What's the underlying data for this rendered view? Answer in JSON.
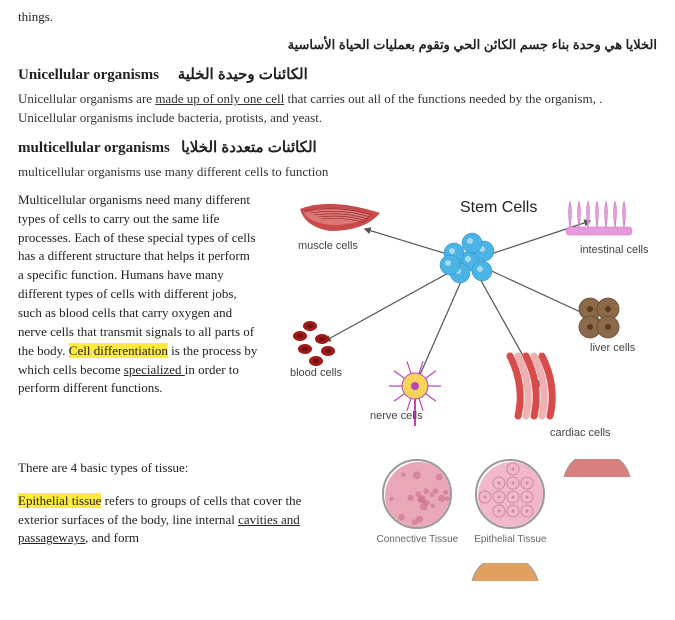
{
  "partial_top": "things.",
  "ar_intro": "الخلايا هي وحدة بناء جسم الكائن الحي وتقوم بعمليات الحياة الأساسية",
  "unicellular": {
    "heading_en": "Unicellular organisms",
    "heading_ar": "الكائنات وحيدة الخلية",
    "para_pre": "Unicellular organisms are ",
    "para_underlined": "made up of only one cell",
    "para_post": " that carries out all of the functions needed by the organism, . Unicellular organisms include bacteria, protists, and yeast."
  },
  "multicellular": {
    "heading_en": "multicellular organisms",
    "heading_ar": "الكائنات متعددة الخلايا",
    "para": "multicellular organisms use many different cells to function"
  },
  "body_text": {
    "p1_pre": "Multicellular organisms need many different types of cells to carry out the same life processes. Each of these special types of cells has a different structure that helps it perform a specific function. Humans have many different types of cells with different jobs, such as blood cells that carry oxygen and nerve cells that transmit signals to all parts of the body. ",
    "p1_hl": "Cell differentiation",
    "p1_mid": " is the process by which cells become ",
    "p1_underlined": "specialized ",
    "p1_post": "in order to perform different functions."
  },
  "diagram": {
    "title": "Stem Cells",
    "labels": {
      "muscle": "muscle cells",
      "intestinal": "intestinal cells",
      "blood": "blood cells",
      "liver": "liver cells",
      "nerve": "nerve cells",
      "cardiac": "cardiac cells"
    },
    "colors": {
      "stem": "#4ab4e6",
      "muscle_a": "#c94a4a",
      "muscle_b": "#e28a8a",
      "intestinal": "#e89adf",
      "blood": "#a01818",
      "liver": "#8a6a4a",
      "nerve_body": "#f5d45a",
      "nerve_edge": "#b848b8",
      "cardiac_a": "#d94a4a",
      "cardiac_b": "#f0b0b0",
      "arrow": "#555555"
    }
  },
  "tissue": {
    "intro": "There are 4 basic types of tissue:",
    "p_pre": "",
    "p_hl": "Epithelial tissue",
    "p_mid": " refers to groups of cells that cover the exterior surfaces of the body, line internal ",
    "p_underlined": "cavities and passageways",
    "p_post": ", and form",
    "items": [
      {
        "label": "Connective Tissue",
        "color": "#e8a8b8",
        "detail": "#c97088"
      },
      {
        "label": "Epithelial Tissue",
        "color": "#f0b8c8",
        "detail": "#d088a0"
      }
    ],
    "circle_size": 70
  }
}
